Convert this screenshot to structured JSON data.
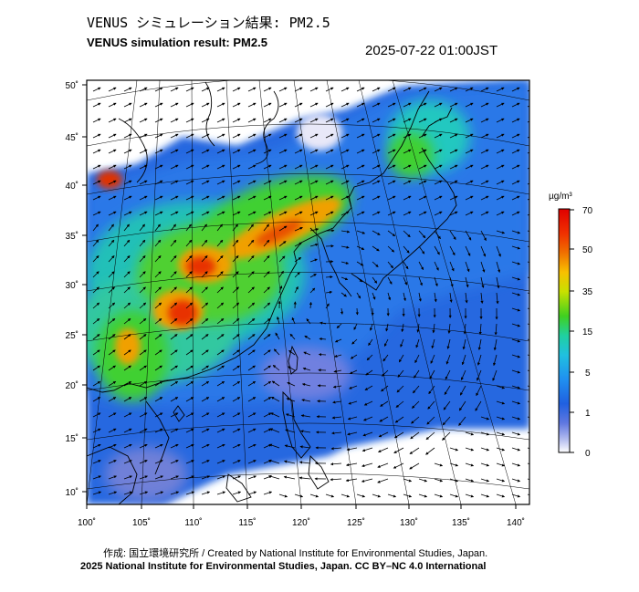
{
  "header": {
    "title_jp": "VENUS シミュレーション結果: PM2.5",
    "title_en": "VENUS simulation result: PM2.5",
    "timestamp": "2025-07-22 01:00JST"
  },
  "map": {
    "lon_ticks": [
      "100˚",
      "105˚",
      "110˚",
      "115˚",
      "120˚",
      "125˚",
      "130˚",
      "135˚",
      "140˚"
    ],
    "lat_ticks": [
      "50˚",
      "45˚",
      "40˚",
      "35˚",
      "30˚",
      "25˚",
      "20˚",
      "15˚",
      "10˚"
    ],
    "layers": [
      "pm25-concentration-field",
      "wind-vector-arrows",
      "coastline",
      "graticule"
    ]
  },
  "colorbar": {
    "unit": "µg/m³",
    "labels": [
      "70",
      "50",
      "35",
      "15",
      "5",
      "1",
      "0"
    ],
    "colors": [
      "#e00000",
      "#f07000",
      "#f8d000",
      "#40d020",
      "#20c8c0",
      "#2070e0",
      "#7080e0",
      "#ffffff"
    ]
  },
  "footer": {
    "credit": "作成: 国立環境研究所 / Created by National Institute for Environmental Studies, Japan.",
    "copyright": "2025 National Institute for Environmental Studies, Japan. CC BY–NC 4.0 International"
  }
}
